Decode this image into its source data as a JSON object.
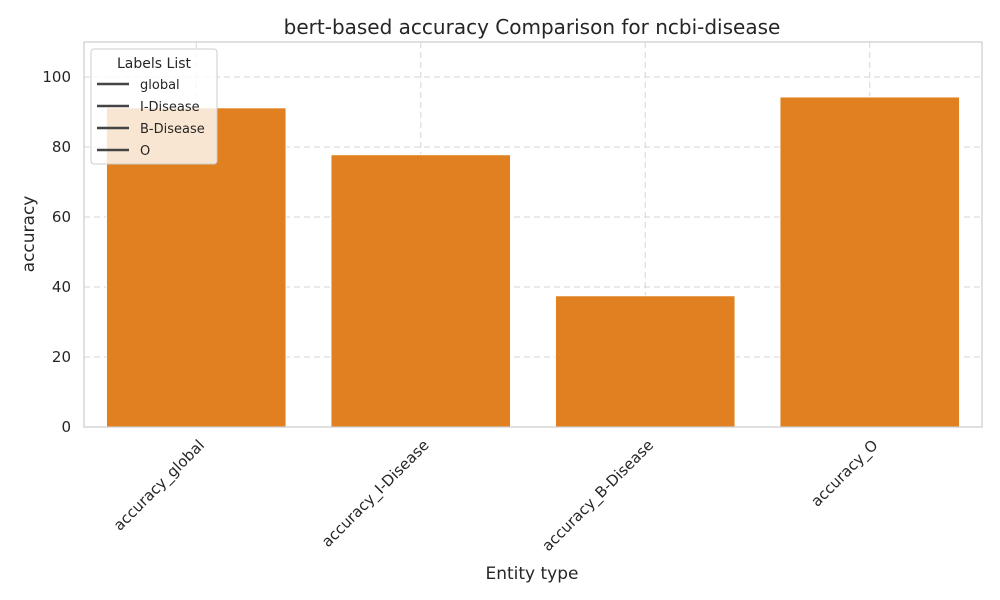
{
  "chart_data": {
    "type": "bar",
    "title": "bert-based  accuracy Comparison for ncbi-disease",
    "xlabel": "Entity type",
    "ylabel": "accuracy",
    "categories": [
      "accuracy_global",
      "accuracy_I-Disease",
      "accuracy_B-Disease",
      "accuracy_O"
    ],
    "values": [
      91.2,
      77.8,
      37.5,
      94.3
    ],
    "ylim": [
      0,
      110
    ],
    "yticks": [
      "0",
      "20",
      "40",
      "60",
      "80",
      "100"
    ],
    "grid": true,
    "bar_color": "#e08020",
    "legend": {
      "title": "Labels List",
      "placement": "top-left",
      "entries": [
        "global",
        "I-Disease",
        "B-Disease",
        "O"
      ]
    }
  }
}
